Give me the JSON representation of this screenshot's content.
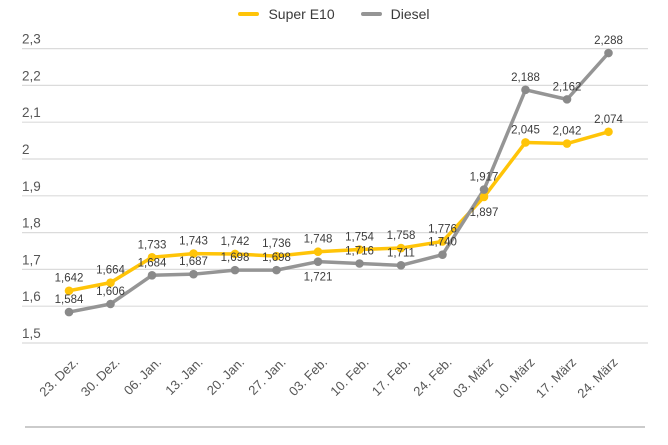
{
  "legend": {
    "items": [
      {
        "label": "Super E10",
        "color": "#FFC408"
      },
      {
        "label": "Diesel",
        "color": "#959595"
      }
    ]
  },
  "chart_data": {
    "type": "line",
    "title": "",
    "xlabel": "",
    "ylabel": "",
    "x": [
      "23. Dez.",
      "30. Dez.",
      "06. Jan.",
      "13. Jan.",
      "20. Jan.",
      "27. Jan.",
      "03. Feb.",
      "10. Feb.",
      "17. Feb.",
      "24. Feb.",
      "03. März",
      "10. März",
      "17. März",
      "24. März"
    ],
    "series": [
      {
        "name": "Super E10",
        "color": "#FFC408",
        "values": [
          1.642,
          1.664,
          1.733,
          1.743,
          1.742,
          1.736,
          1.748,
          1.754,
          1.758,
          1.776,
          1.897,
          2.045,
          2.042,
          2.074
        ],
        "point_labels": [
          "1,642",
          "1,664",
          "1,733",
          "1,743",
          "1,742",
          "1,736",
          "1,748",
          "1,754",
          "1,758",
          "1,776",
          "1,897",
          "2,045",
          "2,042",
          "2,074"
        ],
        "label_below": [
          10
        ]
      },
      {
        "name": "Diesel",
        "color": "#959595",
        "dot_color": "#8a8a8a",
        "values": [
          1.584,
          1.606,
          1.684,
          1.687,
          1.698,
          1.698,
          1.721,
          1.716,
          1.711,
          1.74,
          1.917,
          2.188,
          2.162,
          2.288
        ],
        "point_labels": [
          "1,584",
          "1,606",
          "1,684",
          "1,687",
          "1,698",
          "1,698",
          "1,721",
          "1,716",
          "1,711",
          "1,740",
          "1,917",
          "2,188",
          "2,162",
          "2,288"
        ],
        "label_below": [
          6
        ]
      }
    ],
    "ylim": [
      1.5,
      2.3
    ],
    "y_ticks": [
      "1,5",
      "1,6",
      "1,7",
      "1,8",
      "1,9",
      "2",
      "2,1",
      "2,2",
      "2,3"
    ],
    "grid": "horizontal",
    "legend_position": "top-center",
    "decimal_separator": ",",
    "value_decimals": 3
  },
  "colors": {
    "grid": "#dbdbdb",
    "axis_text": "#565656",
    "data_label": "#3c3c3c",
    "divider": "#cbcbcb",
    "background": "#ffffff"
  }
}
